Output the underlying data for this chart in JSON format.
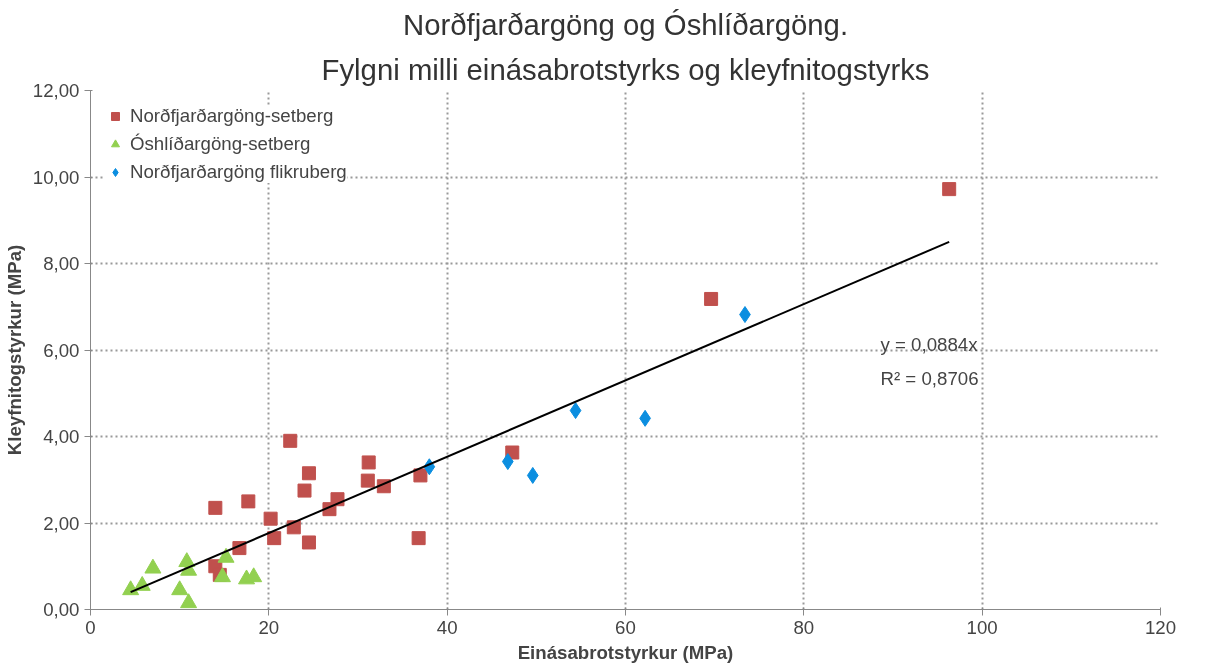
{
  "chart_data": {
    "type": "scatter",
    "title": "Norðfjarðargöng og Óshlíðargöng.",
    "subtitle": "Fylgni milli einásabrotstyrks og kleyfnitogstyrks",
    "xlabel": "Einásabrotstyrkur (MPa)",
    "ylabel": "Kleyfnitogstyrkur (MPa)",
    "xlim": [
      0,
      120
    ],
    "xticks": [
      0,
      20,
      40,
      60,
      80,
      100,
      120
    ],
    "ylim": [
      0,
      12
    ],
    "yticks": [
      {
        "value": 0,
        "label": "0,00"
      },
      {
        "value": 2,
        "label": "2,00"
      },
      {
        "value": 4,
        "label": "4,00"
      },
      {
        "value": 6,
        "label": "6,00"
      },
      {
        "value": 8,
        "label": "8,00"
      },
      {
        "value": 10,
        "label": "10,00"
      },
      {
        "value": 12,
        "label": "12,00"
      }
    ],
    "grid": true,
    "legend": "top left",
    "series": [
      {
        "name": "Norðfjarðargöng-setberg",
        "color": "#c0504d",
        "marker": "square",
        "x": [
          14,
          17.7,
          22.4,
          24.5,
          24,
          20.2,
          20.6,
          22.8,
          24.5,
          16.7,
          14,
          14.5,
          26.8,
          27.7,
          31.2,
          31.1,
          32.9,
          37,
          36.8,
          47.3,
          69.6,
          96.3
        ],
        "values": [
          2.35,
          2.5,
          3.9,
          3.15,
          2.75,
          2.1,
          1.65,
          1.9,
          1.55,
          1.42,
          1.0,
          0.8,
          2.32,
          2.55,
          3.4,
          2.98,
          2.85,
          3.1,
          1.65,
          3.63,
          7.18,
          9.72
        ]
      },
      {
        "name": "Óshlíðargöng-setberg",
        "color": "#92d050",
        "marker": "triangle",
        "x": [
          4.5,
          5.8,
          7,
          10,
          11,
          10.8,
          11,
          14.8,
          15.2,
          17.5,
          18.3
        ],
        "values": [
          0.45,
          0.55,
          0.95,
          0.45,
          0.15,
          1.1,
          0.9,
          0.75,
          1.2,
          0.7,
          0.75
        ]
      },
      {
        "name": "Norðfjarðargöng flikruberg",
        "color": "#0b8ee0",
        "marker": "diamond",
        "x": [
          38,
          46.8,
          49.6,
          54.4,
          62.2,
          73.4
        ],
        "values": [
          3.3,
          3.42,
          3.1,
          4.6,
          4.42,
          6.82
        ]
      },
      {
        "type": "line",
        "color": "#000000",
        "marker": "none",
        "x": [
          4.5,
          96.3
        ],
        "values": [
          0.4,
          8.5
        ]
      }
    ],
    "annotations": [
      "y = 0,0884x",
      "R² = 0,8706"
    ]
  }
}
